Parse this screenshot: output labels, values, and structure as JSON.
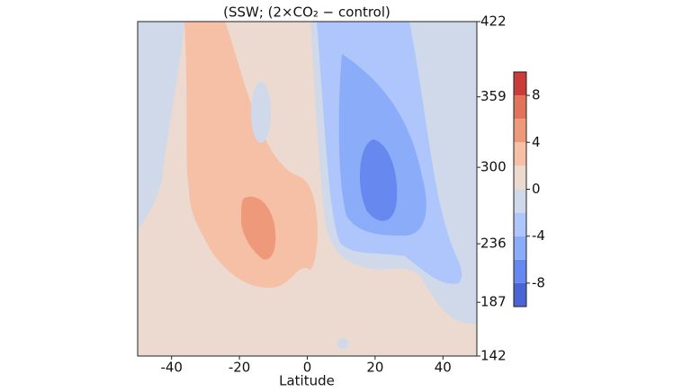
{
  "chart_data": {
    "type": "contour",
    "title": "(SSW; (2×CO₂ − control)",
    "xlabel": "Latitude",
    "xlim": [
      -50,
      50
    ],
    "xticks": [
      -40,
      -20,
      0,
      20,
      40
    ],
    "ylim": [
      142,
      422
    ],
    "yticks": [
      142,
      187,
      236,
      300,
      359,
      422
    ],
    "colorbar": {
      "levels": [
        -10,
        -8,
        -6,
        -4,
        -2,
        0,
        2,
        4,
        6,
        8,
        10
      ],
      "colors": [
        "#4a64d6",
        "#6788ee",
        "#8badf9",
        "#aec6fb",
        "#cfd9ea",
        "#ecd9cf",
        "#f5c0a6",
        "#ee9a7a",
        "#e0735a",
        "#c93c3a"
      ],
      "ticks": [
        -8,
        -4,
        0,
        4,
        8
      ]
    }
  }
}
